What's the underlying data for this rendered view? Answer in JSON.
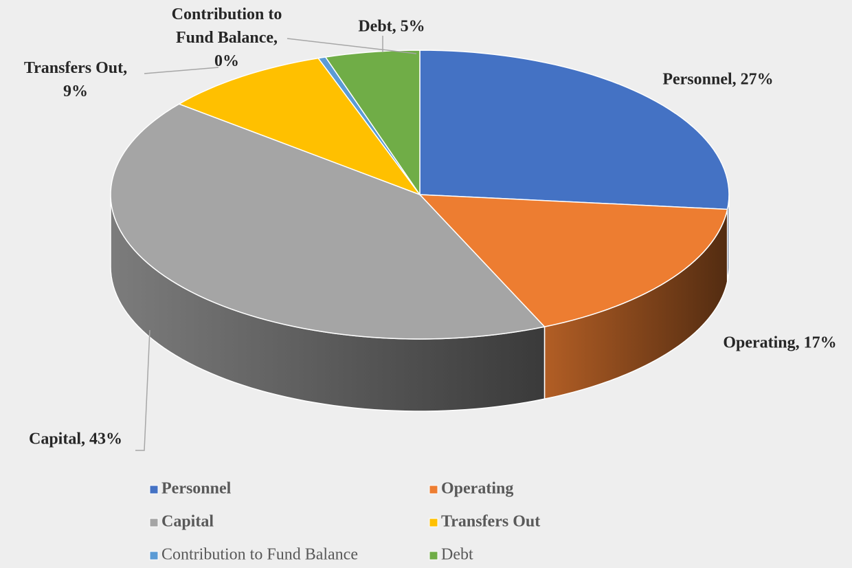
{
  "chart_data": {
    "type": "pie",
    "categories": [
      "Personnel",
      "Operating",
      "Capital",
      "Transfers Out",
      "Contribution to Fund Balance",
      "Debt"
    ],
    "values": [
      27,
      17,
      43,
      9,
      0.4,
      5
    ],
    "value_labels": [
      "Personnel, 27%",
      "Operating, 17%",
      "Capital, 43%",
      "Transfers Out, 9%",
      "Contribution to Fund Balance, 0%",
      "Debt, 5%"
    ],
    "colors": [
      "#4472c4",
      "#ed7d31",
      "#a5a5a5",
      "#ffc000",
      "#5b9bd5",
      "#70ad47"
    ],
    "legend": "bottom"
  }
}
